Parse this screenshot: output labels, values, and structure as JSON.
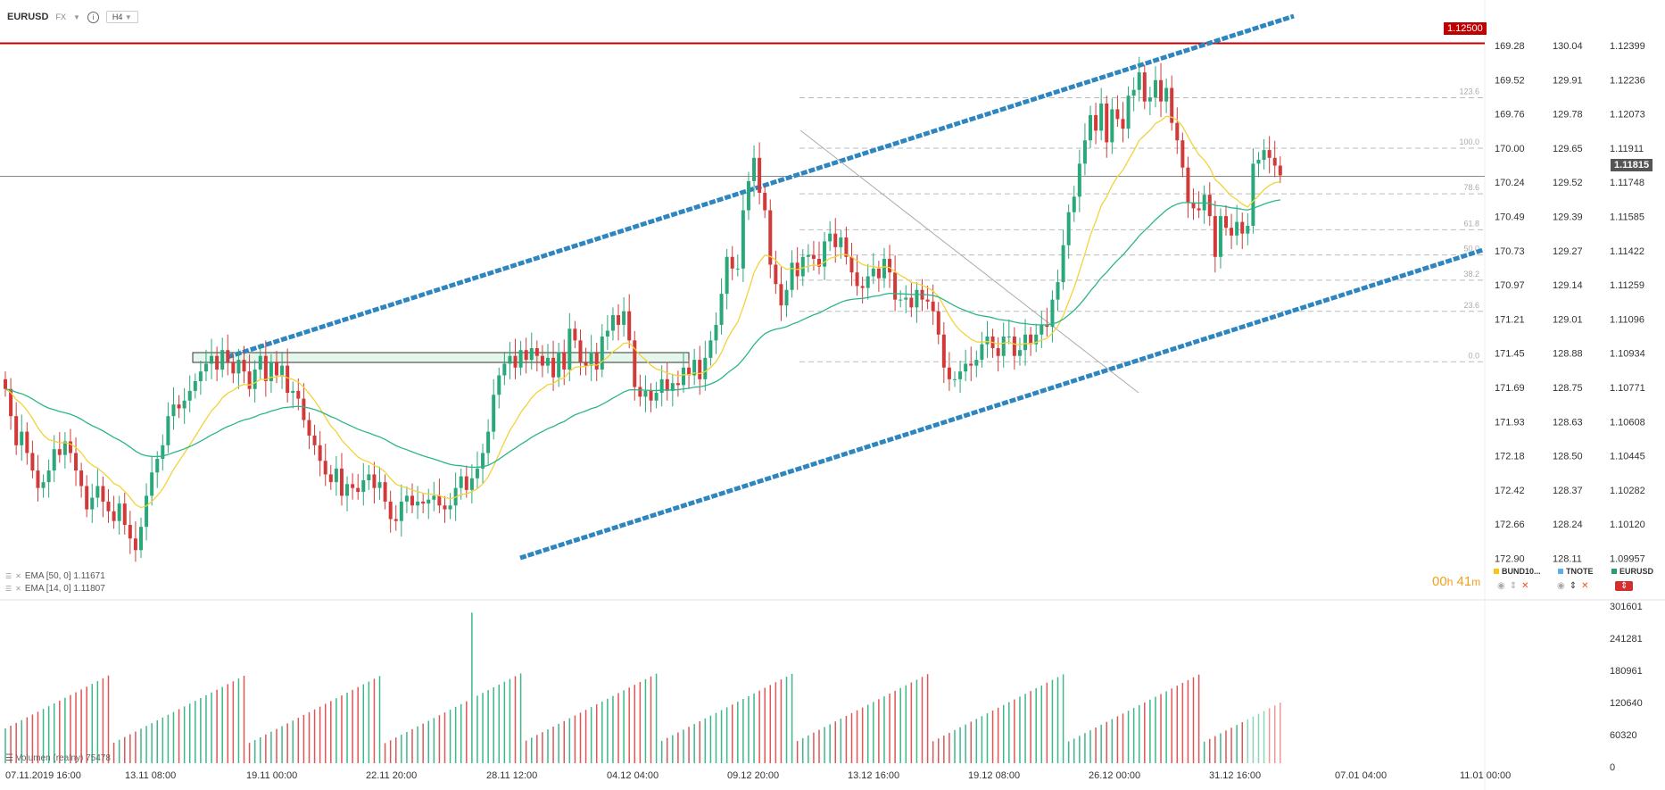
{
  "header": {
    "symbol": "EURUSD",
    "exchange": "FX",
    "info_icon": "info-icon",
    "timeframe": "H4"
  },
  "indicators": {
    "ema50": "EMA [50, 0] 1.11671",
    "ema14": "EMA [14, 0] 1.11807",
    "volume": "Volumen (realny) 75478"
  },
  "timer": {
    "hours": "00",
    "h": "h",
    "minutes": "41",
    "m": "m"
  },
  "instruments": [
    {
      "name": "BUND10...",
      "color": "#f5c518"
    },
    {
      "name": "TNOTE",
      "color": "#5ab0e8"
    },
    {
      "name": "EURUSD",
      "color": "#2a9d6e"
    }
  ],
  "price_badges": {
    "resistance": "1.12500",
    "current": "1.11815"
  },
  "colors": {
    "up": "#2aa87a",
    "down": "#d23a3a",
    "ema14": "#f2d33a",
    "ema50": "#2bb58a",
    "channel": "#2e86c1",
    "resistance": "#c00000"
  },
  "chart_data": {
    "type": "candlestick",
    "symbol": "EURUSD",
    "timeframe": "H4",
    "ylim": [
      1.0985,
      1.1264
    ],
    "axes": {
      "eurusd_ticks": [
        1.12399,
        1.12236,
        1.12073,
        1.11911,
        1.11748,
        1.11585,
        1.11422,
        1.11259,
        1.11096,
        1.10934,
        1.10771,
        1.10608,
        1.10445,
        1.10282,
        1.1012,
        1.09957
      ],
      "bund_ticks": [
        "169.28",
        "169.52",
        "169.76",
        "170.00",
        "170.24",
        "170.49",
        "170.73",
        "170.97",
        "171.21",
        "171.45",
        "171.69",
        "171.93",
        "172.18",
        "172.42",
        "172.66",
        "172.90"
      ],
      "tnote_ticks": [
        "130.04",
        "129.91",
        "129.78",
        "129.65",
        "129.52",
        "129.39",
        "129.27",
        "129.14",
        "129.01",
        "128.88",
        "128.75",
        "128.63",
        "128.50",
        "128.37",
        "128.24",
        "128.11"
      ],
      "x_labels": [
        "07.11.2019 16:00",
        "13.11 08:00",
        "19.11 00:00",
        "22.11 20:00",
        "28.11 12:00",
        "04.12 04:00",
        "09.12 20:00",
        "13.12 16:00",
        "19.12 08:00",
        "26.12 00:00",
        "31.12 16:00",
        "07.01 04:00",
        "11.01 00:00"
      ],
      "volume_ticks": [
        "301601",
        "241281",
        "180961",
        "120640",
        "60320",
        "0"
      ]
    },
    "closes": [
      1.1072,
      1.1058,
      1.1043,
      1.105,
      1.1039,
      1.103,
      1.1021,
      1.1024,
      1.103,
      1.1041,
      1.1038,
      1.1045,
      1.1039,
      1.103,
      1.1022,
      1.101,
      1.1016,
      1.1022,
      1.1014,
      1.1009,
      1.1004,
      1.1013,
      1.1002,
      1.0995,
      1.0989,
      1.1001,
      1.1017,
      1.1029,
      1.1036,
      1.1043,
      1.1058,
      1.1064,
      1.1062,
      1.1066,
      1.1071,
      1.1076,
      1.1081,
      1.1085,
      1.1089,
      1.1082,
      1.1092,
      1.1086,
      1.108,
      1.1087,
      1.1081,
      1.1072,
      1.1082,
      1.1089,
      1.1076,
      1.1086,
      1.1079,
      1.1084,
      1.107,
      1.1071,
      1.1067,
      1.1056,
      1.1048,
      1.1043,
      1.1035,
      1.1028,
      1.1024,
      1.1031,
      1.1017,
      1.1023,
      1.1021,
      1.1019,
      1.1025,
      1.1028,
      1.1021,
      1.1024,
      1.1014,
      1.1005,
      1.1004,
      1.1014,
      1.1017,
      1.1012,
      1.1014,
      1.1013,
      1.1015,
      1.1017,
      1.1012,
      1.101,
      1.1012,
      1.1021,
      1.1027,
      1.102,
      1.1026,
      1.1031,
      1.1039,
      1.105,
      1.1069,
      1.1079,
      1.1085,
      1.1089,
      1.1083,
      1.1092,
      1.1087,
      1.1093,
      1.1089,
      1.1084,
      1.1088,
      1.1078,
      1.1091,
      1.1082,
      1.1103,
      1.1097,
      1.1086,
      1.1084,
      1.1091,
      1.1082,
      1.1099,
      1.1102,
      1.111,
      1.1105,
      1.1112,
      1.1097,
      1.1073,
      1.1068,
      1.1071,
      1.1066,
      1.107,
      1.1077,
      1.1071,
      1.1075,
      1.1074,
      1.1083,
      1.1079,
      1.1087,
      1.1077,
      1.1088,
      1.1097,
      1.1105,
      1.1121,
      1.114,
      1.1134,
      1.1134,
      1.1164,
      1.1179,
      1.1191,
      1.1173,
      1.1164,
      1.1136,
      1.1126,
      1.1115,
      1.1123,
      1.1137,
      1.113,
      1.114,
      1.1141,
      1.1139,
      1.1135,
      1.1148,
      1.1152,
      1.1145,
      1.115,
      1.114,
      1.1132,
      1.1125,
      1.1124,
      1.113,
      1.1134,
      1.1129,
      1.1139,
      1.1132,
      1.1118,
      1.1118,
      1.1119,
      1.1114,
      1.1123,
      1.1118,
      1.1117,
      1.1112,
      1.11,
      1.1083,
      1.1077,
      1.1077,
      1.1081,
      1.1085,
      1.1084,
      1.1087,
      1.1095,
      1.1099,
      1.1093,
      1.1089,
      1.1099,
      1.1099,
      1.1089,
      1.1092,
      1.11,
      1.1095,
      1.11,
      1.1105,
      1.1104,
      1.1118,
      1.1127,
      1.1146,
      1.1163,
      1.1171,
      1.1188,
      1.12,
      1.1213,
      1.1205,
      1.1219,
      1.1199,
      1.1216,
      1.1211,
      1.1206,
      1.1223,
      1.1226,
      1.1235,
      1.122,
      1.1222,
      1.1231,
      1.122,
      1.1227,
      1.1209,
      1.12,
      1.1186,
      1.1168,
      1.1165,
      1.1164,
      1.1172,
      1.1161,
      1.114,
      1.1161,
      1.1155,
      1.1151,
      1.1158,
      1.1152,
      1.1156,
      1.1188,
      1.119,
      1.1195,
      1.1191,
      1.1187,
      1.1182
    ],
    "ema14_last": 1.11807,
    "ema50_last": 1.11671,
    "resistance_level": 1.125,
    "current_price": 1.11815,
    "fibonacci": {
      "levels": [
        "123.6",
        "100.0",
        "78.6",
        "61.8",
        "50.0",
        "38.2",
        "23.6",
        "0.0"
      ],
      "high": 1.1196,
      "low": 1.1086
    },
    "volume_last": 75478
  }
}
